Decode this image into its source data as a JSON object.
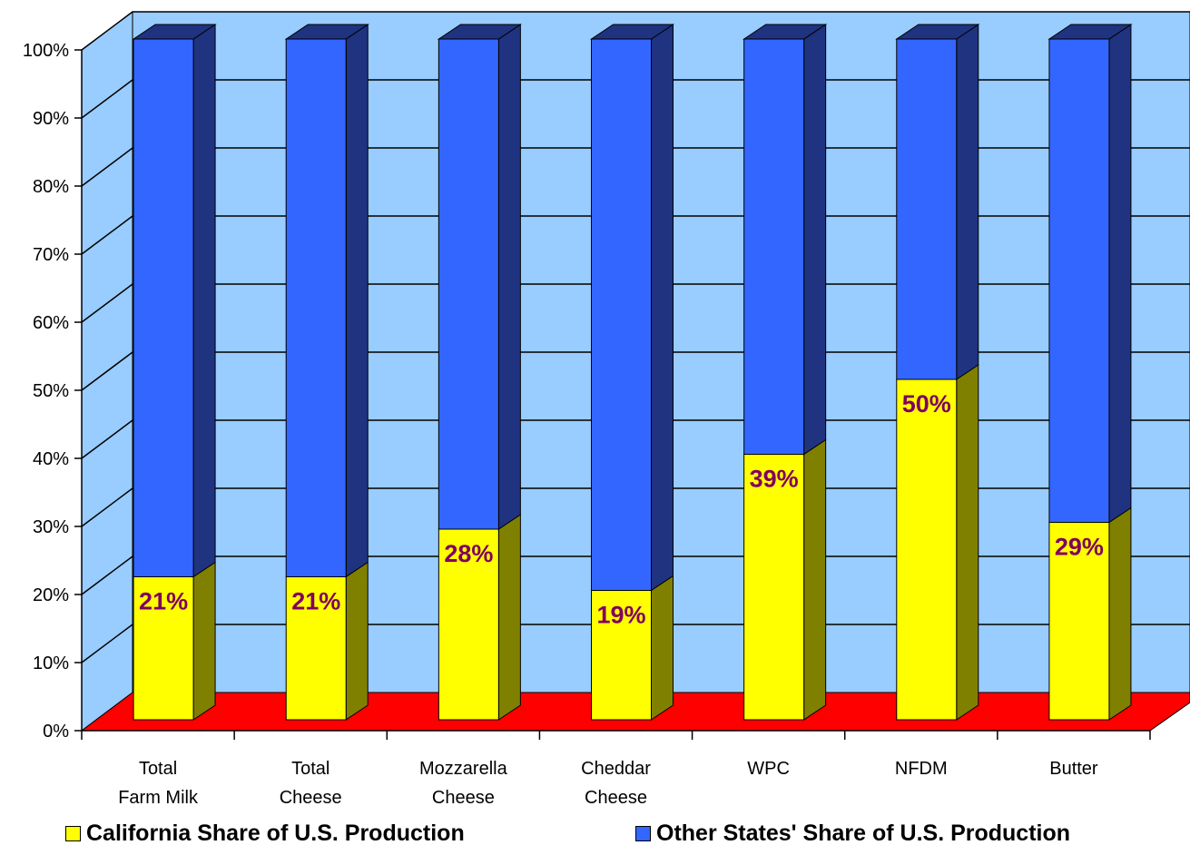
{
  "chart_data": {
    "type": "bar",
    "stacked": true,
    "three_d": true,
    "categories": [
      "Total\nFarm Milk",
      "Total\nCheese",
      "Mozzarella\nCheese",
      "Cheddar\nCheese",
      "WPC",
      "NFDM",
      "Butter"
    ],
    "series": [
      {
        "name": "California Share of U.S. Production",
        "values": [
          21,
          21,
          28,
          19,
          39,
          50,
          29
        ],
        "data_labels": [
          "21%",
          "21%",
          "28%",
          "19%",
          "39%",
          "50%",
          "29%"
        ]
      },
      {
        "name": "Other States' Share of U.S. Production",
        "values": [
          79,
          79,
          72,
          81,
          61,
          50,
          71
        ]
      }
    ],
    "ylim": [
      0,
      100
    ],
    "yticks": [
      "0%",
      "10%",
      "20%",
      "30%",
      "40%",
      "50%",
      "60%",
      "70%",
      "80%",
      "90%",
      "100%"
    ],
    "title": "",
    "xlabel": "",
    "ylabel": "",
    "grid": true,
    "legend_position": "bottom",
    "colors": {
      "california_front": "#ffff00",
      "california_side": "#808000",
      "other_front": "#3366ff",
      "other_side": "#1f3380",
      "wall": "#99ccff",
      "floor": "#ff0000",
      "data_label": "#800060"
    }
  },
  "legend": {
    "california": "California Share of U.S. Production",
    "other": "Other States' Share of U.S. Production"
  }
}
